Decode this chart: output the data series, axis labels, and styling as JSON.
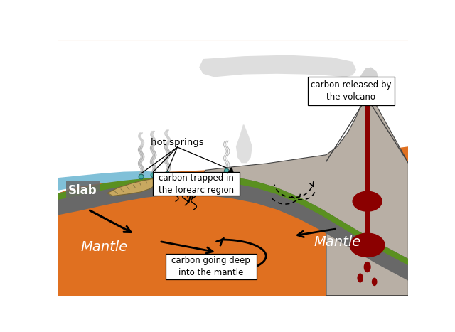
{
  "colors": {
    "mantle_orange": "#E07020",
    "slab_gray": "#686868",
    "slab_green": "#5A9020",
    "forearc_gray": "#B8AFA5",
    "forearc_light": "#C8BFB5",
    "ocean_blue": "#80C0D8",
    "sediment_tan": "#C8A860",
    "volcano_red": "#8B0000",
    "background": "#FFFFFF",
    "smoke_gray": "#C0C0C0",
    "hot_spring_teal": "#48B0A8",
    "arrow_black": "#111111",
    "border_dark": "#444444"
  },
  "labels": {
    "slab": "Slab",
    "mantle_left": "Mantle",
    "mantle_right": "Mantle",
    "hot_springs": "hot springs",
    "carbon_forearc": "carbon trapped in\nthe forearc region",
    "carbon_deep": "carbon going deep\ninto the mantle",
    "carbon_volcano": "carbon released by\nthe volcano"
  }
}
